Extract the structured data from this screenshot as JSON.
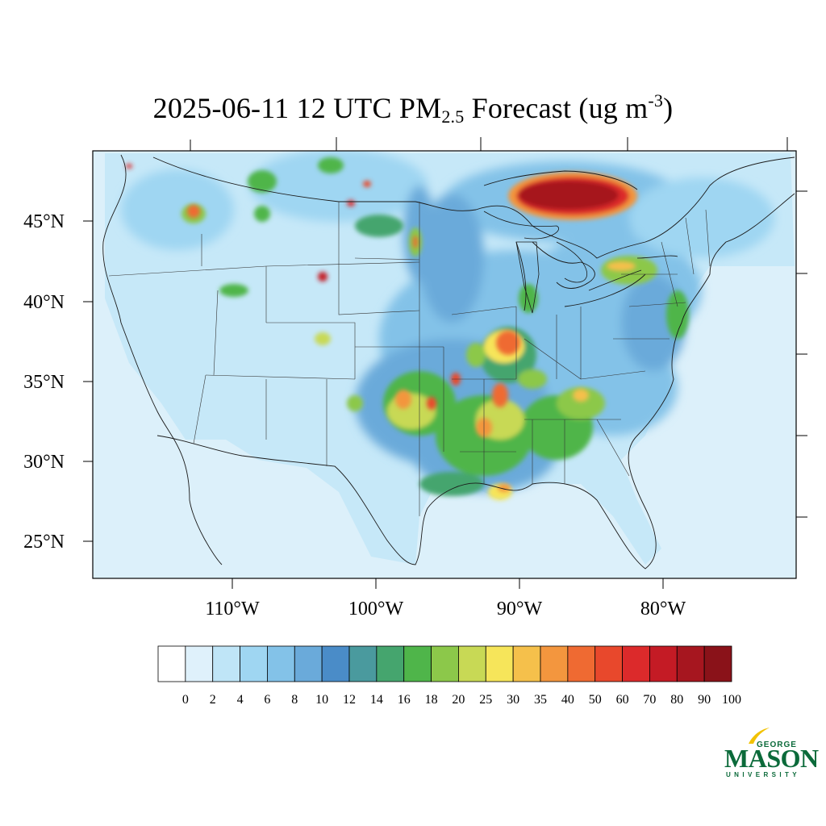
{
  "title": {
    "prefix": "2025-06-11 12 UTC PM",
    "subscript": "2.5",
    "middle": " Forecast (ug m",
    "superscript": "-3",
    "suffix": ")"
  },
  "map": {
    "lat_labels": [
      "45°N",
      "40°N",
      "35°N",
      "30°N",
      "25°N"
    ],
    "lon_labels": [
      "110°W",
      "100°W",
      "90°W",
      "80°W"
    ],
    "background_color": "#dcf0fa"
  },
  "colorbar": {
    "labels": [
      "0",
      "2",
      "4",
      "6",
      "8",
      "10",
      "12",
      "14",
      "16",
      "18",
      "20",
      "25",
      "30",
      "35",
      "40",
      "50",
      "60",
      "70",
      "80",
      "90",
      "100"
    ],
    "colors": [
      "#ffffff",
      "#dff1fb",
      "#bfe5f7",
      "#9fd6f2",
      "#83c2e8",
      "#6aaada",
      "#4a8cc8",
      "#4a9a9e",
      "#45a56e",
      "#4fb54a",
      "#8cc84a",
      "#c8d955",
      "#f6e55a",
      "#f5c04b",
      "#f3963e",
      "#ef6a32",
      "#e8482c",
      "#dc2a2b",
      "#c41b25",
      "#a6161f",
      "#8a1219"
    ]
  },
  "logo": {
    "line1": "GEORGE",
    "line2": "MASON",
    "line3": "UNIVERSITY",
    "color": "#0b6a3a",
    "accent": "#f2c200"
  }
}
